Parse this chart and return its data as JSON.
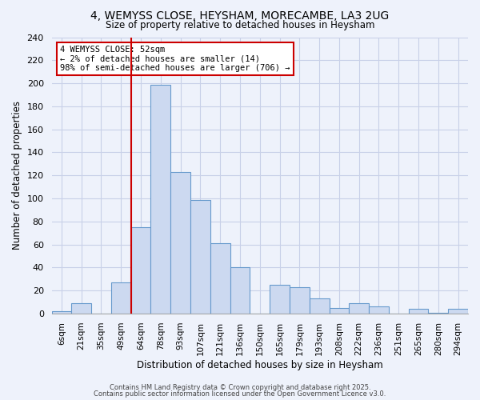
{
  "title_line1": "4, WEMYSS CLOSE, HEYSHAM, MORECAMBE, LA3 2UG",
  "title_line2": "Size of property relative to detached houses in Heysham",
  "xlabel": "Distribution of detached houses by size in Heysham",
  "ylabel": "Number of detached properties",
  "bin_labels": [
    "6sqm",
    "21sqm",
    "35sqm",
    "49sqm",
    "64sqm",
    "78sqm",
    "93sqm",
    "107sqm",
    "121sqm",
    "136sqm",
    "150sqm",
    "165sqm",
    "179sqm",
    "193sqm",
    "208sqm",
    "222sqm",
    "236sqm",
    "251sqm",
    "265sqm",
    "280sqm",
    "294sqm"
  ],
  "bar_values": [
    2,
    9,
    0,
    27,
    75,
    199,
    123,
    99,
    61,
    40,
    0,
    25,
    23,
    13,
    5,
    9,
    6,
    0,
    4,
    1,
    4
  ],
  "bar_color": "#ccd9f0",
  "bar_edge_color": "#6699cc",
  "vline_index": 3,
  "vline_color": "#cc0000",
  "annotation_title": "4 WEMYSS CLOSE: 52sqm",
  "annotation_line2": "← 2% of detached houses are smaller (14)",
  "annotation_line3": "98% of semi-detached houses are larger (706) →",
  "annotation_box_color": "#cc0000",
  "ylim": [
    0,
    240
  ],
  "yticks": [
    0,
    20,
    40,
    60,
    80,
    100,
    120,
    140,
    160,
    180,
    200,
    220,
    240
  ],
  "background_color": "#eef2fb",
  "grid_color": "#c8d0e8",
  "footer_line1": "Contains HM Land Registry data © Crown copyright and database right 2025.",
  "footer_line2": "Contains public sector information licensed under the Open Government Licence v3.0."
}
